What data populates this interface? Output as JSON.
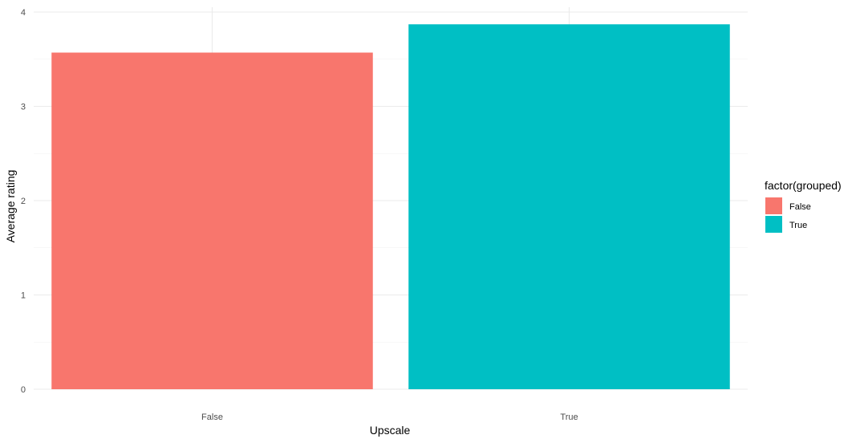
{
  "chart_data": {
    "type": "bar",
    "categories": [
      "False",
      "True"
    ],
    "values": [
      3.57,
      3.87
    ],
    "colors": [
      "#F8766D",
      "#00BFC4"
    ],
    "xlabel": "Upscale",
    "ylabel": "Average rating",
    "ylim": [
      0,
      4
    ],
    "yticks": [
      0,
      1,
      2,
      3,
      4
    ],
    "grid": true,
    "legend": {
      "title": "factor(grouped)",
      "position": "right",
      "entries": [
        {
          "label": "False",
          "color": "#F8766D"
        },
        {
          "label": "True",
          "color": "#00BFC4"
        }
      ]
    }
  }
}
